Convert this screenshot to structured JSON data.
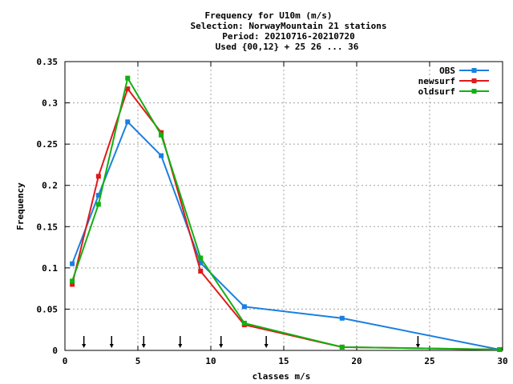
{
  "chart_data": {
    "type": "line",
    "title_lines": [
      "Frequency  for U10m (m/s)",
      "Selection: NorwayMountain     21 stations",
      "Period: 20210716-20210720",
      "Used {00,12} + 25 26 ... 36"
    ],
    "xlabel": "classes m/s",
    "ylabel": "Frequency",
    "xlim": [
      0,
      30
    ],
    "ylim": [
      0,
      0.35
    ],
    "x_ticks": [
      0,
      5,
      10,
      15,
      20,
      25,
      30
    ],
    "y_ticks": [
      0,
      0.05,
      0.1,
      0.15,
      0.2,
      0.25,
      0.3,
      0.35
    ],
    "x_tick_labels": [
      "0",
      "5",
      "10",
      "15",
      "20",
      "25",
      "30"
    ],
    "y_tick_labels": [
      "0",
      "0.05",
      "0.1",
      "0.15",
      "0.2",
      "0.25",
      "0.3",
      "0.35"
    ],
    "grid": true,
    "legend_position": "top-right",
    "class_boundary_arrows": [
      1.3,
      3.2,
      5.4,
      7.9,
      10.7,
      13.8,
      24.2
    ],
    "series": [
      {
        "name": "OBS",
        "color": "#1a7fe0",
        "x": [
          0.5,
          2.3,
          4.3,
          6.6,
          9.3,
          12.3,
          19.0,
          29.8
        ],
        "y": [
          0.105,
          0.188,
          0.277,
          0.236,
          0.106,
          0.053,
          0.039,
          0.001
        ]
      },
      {
        "name": "newsurf",
        "color": "#e01a1a",
        "x": [
          0.5,
          2.3,
          4.3,
          6.6,
          9.3,
          12.3,
          19.0,
          29.8
        ],
        "y": [
          0.08,
          0.211,
          0.317,
          0.264,
          0.096,
          0.031,
          0.004,
          0.001
        ]
      },
      {
        "name": "oldsurf",
        "color": "#12b012",
        "x": [
          0.5,
          2.3,
          4.3,
          6.6,
          9.3,
          12.3,
          19.0,
          29.8
        ],
        "y": [
          0.084,
          0.177,
          0.33,
          0.261,
          0.112,
          0.033,
          0.004,
          0.001
        ]
      }
    ]
  }
}
